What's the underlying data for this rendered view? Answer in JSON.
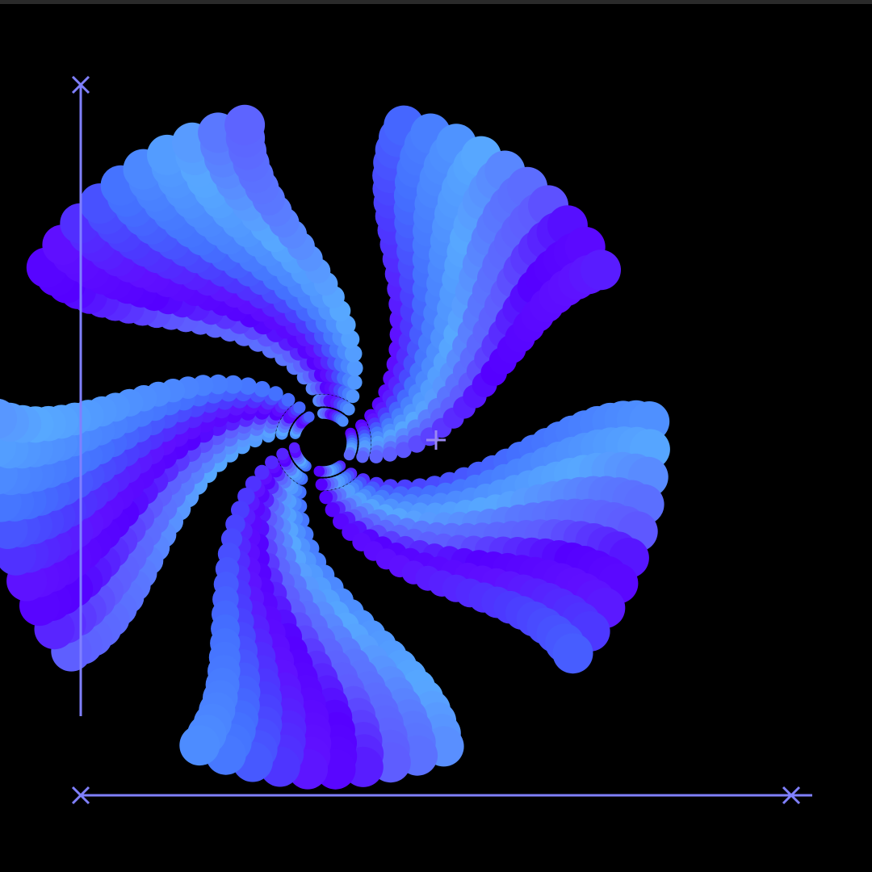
{
  "artwork": {
    "petal_count": 5,
    "circles_per_petal": 8,
    "layers": 10,
    "colors": {
      "background": "#000000",
      "top_bar": "#2a2a2a",
      "axis": "#8080ff",
      "center_marker": "#9a88f2",
      "palette": [
        "#5500ff",
        "#5f10ff",
        "#4b3cff",
        "#4470ff",
        "#4d8cff",
        "#57a8ff",
        "#5a78ff",
        "#5e5cff"
      ]
    },
    "markers": {
      "axis_end_icon": "cross-icon",
      "center_icon": "plus-icon"
    }
  }
}
